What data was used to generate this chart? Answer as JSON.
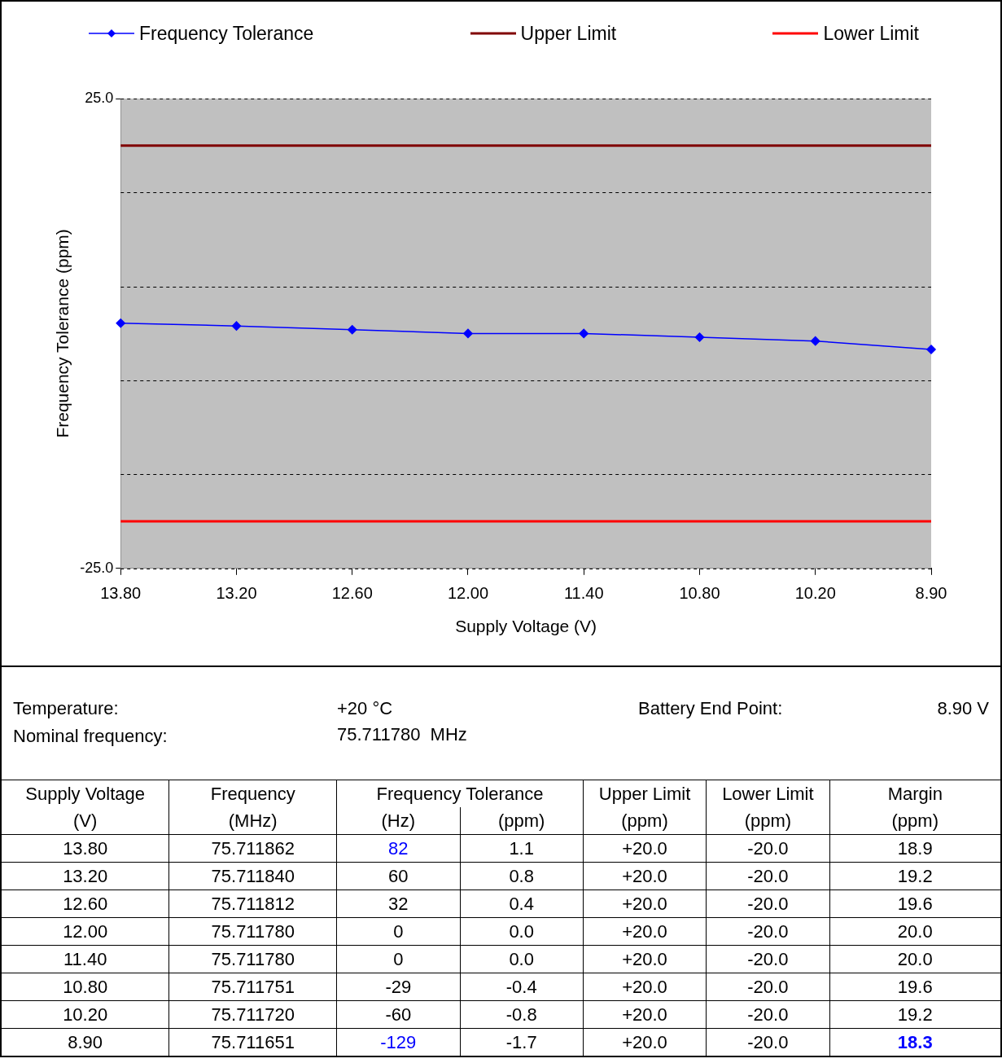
{
  "chart_data": {
    "type": "line",
    "xlabel": "Supply Voltage (V)",
    "ylabel": "Frequency Tolerance (ppm)",
    "categories": [
      "13.80",
      "13.20",
      "12.60",
      "12.00",
      "11.40",
      "10.80",
      "10.20",
      "8.90"
    ],
    "series": [
      {
        "name": "Frequency Tolerance",
        "color": "#0000ff",
        "values": [
          1.1,
          0.8,
          0.4,
          0.0,
          0.0,
          -0.4,
          -0.8,
          -1.7
        ]
      }
    ],
    "ylim": [
      -25,
      25
    ],
    "yticks": [
      {
        "value": -25,
        "label": "-25.0"
      },
      {
        "value": -15,
        "label": null
      },
      {
        "value": -5,
        "label": null
      },
      {
        "value": 5,
        "label": null
      },
      {
        "value": 15,
        "label": null
      },
      {
        "value": 25,
        "label": "25.0"
      }
    ],
    "ref_lines": [
      {
        "axis": "y",
        "value": 20,
        "label": "Upper Limit",
        "color": "#800000"
      },
      {
        "axis": "y",
        "value": -20,
        "label": "Lower Limit",
        "color": "#ff0000"
      }
    ],
    "grid": "y",
    "legend": "top",
    "marker": "diamond",
    "line_style": "solid",
    "annotations": [
      "Temperature:",
      "+20 °C",
      "Battery End Point:",
      "8.90 V",
      "Nominal frequency:",
      "75.711780  MHz",
      "Supply Voltage",
      "Frequency",
      "Frequency Tolerance",
      "Upper Limit",
      "Lower Limit",
      "Margin",
      "(V)",
      "(MHz)",
      "(Hz)",
      "(ppm)",
      "(ppm)",
      "(ppm)",
      "(ppm)",
      "75.711862",
      "82",
      "1.1",
      "+20.0",
      "-20.0",
      "18.9",
      "75.711840",
      "60",
      "0.8",
      "+20.0",
      "-20.0",
      "19.2",
      "75.711812",
      "32",
      "0.4",
      "+20.0",
      "-20.0",
      "19.6",
      "75.711780",
      "0",
      "0.0",
      "+20.0",
      "-20.0",
      "20.0",
      "75.711780",
      "0",
      "0.0",
      "+20.0",
      "-20.0",
      "20.0",
      "75.711751",
      "-29",
      "-0.4",
      "+20.0",
      "-20.0",
      "19.6",
      "75.711720",
      "-60",
      "-0.8",
      "+20.0",
      "-20.0",
      "19.2",
      "75.711651",
      "-129",
      "-1.7",
      "+20.0",
      "-20.0",
      "18.3"
    ]
  }
}
